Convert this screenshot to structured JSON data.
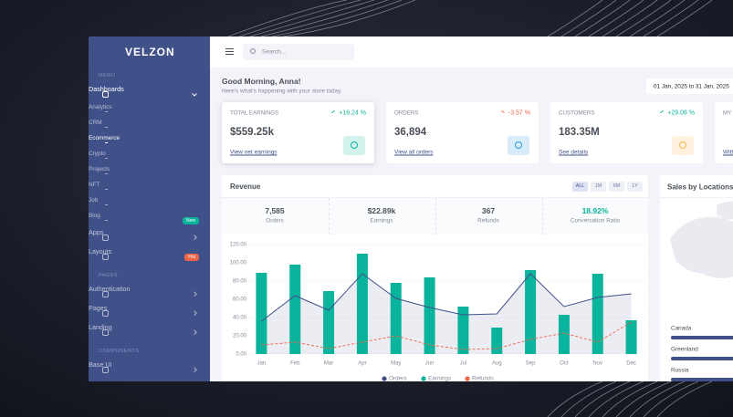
{
  "sidebar": {
    "logo": "VELZON",
    "groups": [
      {
        "heading": "MENU",
        "items": [
          {
            "label": "Dashboards",
            "expanded": true,
            "children": [
              {
                "label": "Analytics"
              },
              {
                "label": "CRM"
              },
              {
                "label": "Ecommerce",
                "active": true
              },
              {
                "label": "Crypto"
              },
              {
                "label": "Projects"
              },
              {
                "label": "NFT"
              },
              {
                "label": "Job"
              },
              {
                "label": "Blog",
                "badge": "New",
                "badge_color": "#0ab39c"
              }
            ]
          },
          {
            "label": "Apps"
          },
          {
            "label": "Layouts",
            "badge": "Hot",
            "badge_color": "#f06548"
          }
        ]
      },
      {
        "heading": "PAGES",
        "items": [
          {
            "label": "Authentication"
          },
          {
            "label": "Pages"
          },
          {
            "label": "Landing"
          }
        ]
      },
      {
        "heading": "COMPONENTS",
        "items": [
          {
            "label": "Base UI"
          }
        ]
      }
    ]
  },
  "topbar": {
    "search_placeholder": "Search..."
  },
  "greeting": {
    "title": "Good Morning, Anna!",
    "subtitle": "Here's what's happening with your store today.",
    "date_range": "01 Jan, 2025 to 31 Jan, 2025"
  },
  "cards": [
    {
      "title": "TOTAL EARNINGS",
      "change": "+16.24 %",
      "value": "$559.25k",
      "link": "View net earnings",
      "trend_color": "#0ab39c",
      "icon_color": "#0ab39c",
      "highlighted": true
    },
    {
      "title": "ORDERS",
      "change": "-3.57 %",
      "value": "36,894",
      "link": "View all orders",
      "trend_color": "#f06548",
      "icon_color": "#299cdb"
    },
    {
      "title": "CUSTOMERS",
      "change": "+29.08 %",
      "value": "183.35M",
      "link": "See details",
      "trend_color": "#0ab39c",
      "icon_color": "#f7b84b"
    },
    {
      "title": "MY BALANCE",
      "link": "Withdraw money",
      "icon_color": "#405189"
    }
  ],
  "revenue": {
    "filters": [
      {
        "label": "ALL",
        "active": true
      },
      {
        "label": "1M"
      },
      {
        "label": "6M"
      },
      {
        "label": "1Y"
      }
    ],
    "stats": [
      {
        "value": "7,585",
        "label": "Orders"
      },
      {
        "value": "$22.89k",
        "label": "Earnings"
      },
      {
        "value": "367",
        "label": "Refunds"
      },
      {
        "value": "18.92%",
        "label": "Conversation Ratio",
        "color": "#0ab39c"
      }
    ]
  },
  "chart_data": {
    "type": "combo",
    "title": "Revenue",
    "categories": [
      "Jan",
      "Feb",
      "Mar",
      "Apr",
      "May",
      "Jun",
      "Jul",
      "Aug",
      "Sep",
      "Oct",
      "Nov",
      "Dec"
    ],
    "series": [
      {
        "name": "Orders",
        "type": "area",
        "color": "#405189",
        "values": [
          36,
          64,
          48,
          88,
          61,
          51,
          43,
          44,
          88,
          52,
          62,
          66
        ]
      },
      {
        "name": "Earnings",
        "type": "bar",
        "color": "#0ab39c",
        "values": [
          89,
          98,
          69,
          110,
          78,
          84,
          52,
          29,
          92,
          43,
          88,
          37
        ]
      },
      {
        "name": "Refunds",
        "type": "dashed",
        "color": "#f06548",
        "values": [
          10,
          13,
          6,
          13,
          20,
          10,
          5,
          6,
          16,
          23,
          13,
          35
        ]
      }
    ],
    "ylim": [
      0,
      120
    ],
    "yticks": [
      {
        "value": 0,
        "label": "0.00"
      },
      {
        "value": 20,
        "label": "20.00"
      },
      {
        "value": 40,
        "label": "40.00"
      },
      {
        "value": 60,
        "label": "60.00"
      },
      {
        "value": 80,
        "label": "80.00"
      },
      {
        "value": 100,
        "label": "100.00"
      },
      {
        "value": 120,
        "label": "120.00"
      }
    ],
    "grid": true
  },
  "locations": {
    "title": "Sales by Locations",
    "marker": "Canada",
    "list": [
      "Canada",
      "Greenland",
      "Russia"
    ]
  }
}
